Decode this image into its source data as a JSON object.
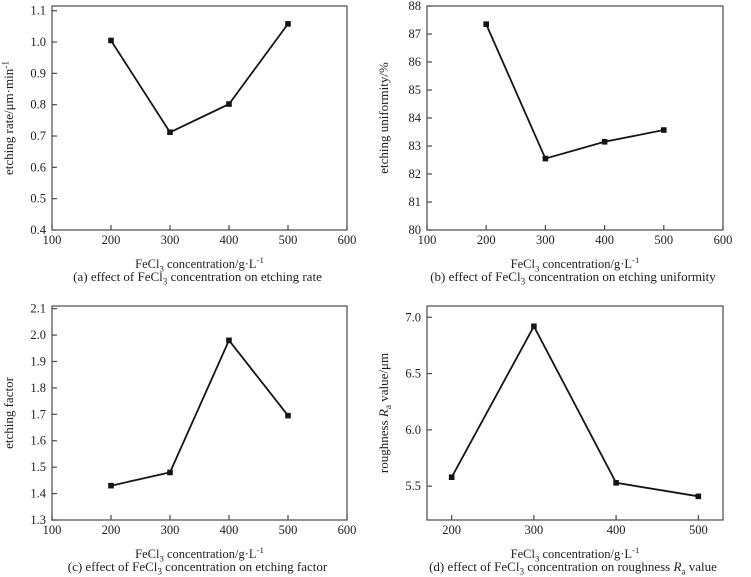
{
  "figure": {
    "background": "#ffffff",
    "text_color": "#1f1f1f",
    "line_color": "#151515",
    "frame_color": "#4a4a4a",
    "marker": "square"
  },
  "chart_data": [
    {
      "id": "a",
      "type": "line",
      "x": [
        200,
        300,
        400,
        500
      ],
      "y": [
        1.005,
        0.712,
        0.802,
        1.058
      ],
      "xlabel": "FeCl~3~ concentration/g·L^-1^",
      "ylabel": "etching rate/μm·min^-1^",
      "caption": "(a) effect of FeCl~3~ concentration on etching rate",
      "xlim": [
        100,
        600
      ],
      "ylim": [
        0.4,
        1.115
      ],
      "xticks": [
        100,
        200,
        300,
        400,
        500,
        600
      ],
      "yticks": [
        0.4,
        0.5,
        0.6,
        0.7,
        0.8,
        0.9,
        1.0,
        1.1
      ],
      "ydecimals": 1,
      "grid": false,
      "legend": "none"
    },
    {
      "id": "b",
      "type": "line",
      "x": [
        200,
        300,
        400,
        500
      ],
      "y": [
        87.35,
        82.55,
        83.15,
        83.57
      ],
      "xlabel": "FeCl~3~ concentration/g·L^-1^",
      "ylabel": "etching uniformity/%",
      "caption": "(b) effect of FeCl~3~ concentration on etching uniformity",
      "xlim": [
        100,
        600
      ],
      "ylim": [
        80,
        88
      ],
      "xticks": [
        100,
        200,
        300,
        400,
        500,
        600
      ],
      "yticks": [
        80,
        81,
        82,
        83,
        84,
        85,
        86,
        87,
        88
      ],
      "ydecimals": 0,
      "grid": false,
      "legend": "none"
    },
    {
      "id": "c",
      "type": "line",
      "x": [
        200,
        300,
        400,
        500
      ],
      "y": [
        1.43,
        1.48,
        1.98,
        1.695
      ],
      "xlabel": "FeCl~3~ concentration/g·L^-1^",
      "ylabel": "etching factor",
      "caption": "(c) effect of FeCl~3~ concentration on etching factor",
      "xlim": [
        100,
        600
      ],
      "ylim": [
        1.3,
        2.11
      ],
      "xticks": [
        100,
        200,
        300,
        400,
        500,
        600
      ],
      "yticks": [
        1.3,
        1.4,
        1.5,
        1.6,
        1.7,
        1.8,
        1.9,
        2.0,
        2.1
      ],
      "ydecimals": 1,
      "grid": false,
      "legend": "none"
    },
    {
      "id": "d",
      "type": "line",
      "x": [
        200,
        300,
        400,
        500
      ],
      "y": [
        5.58,
        6.92,
        5.53,
        5.41
      ],
      "xlabel": "FeCl~3~ concentration/g·L^-1^",
      "ylabel": "roughness *R*~a~ value/μm",
      "caption": "(d) effect of FeCl~3~ concentration on roughness *R*~a~ value",
      "xlim": [
        170,
        530
      ],
      "ylim": [
        5.2,
        7.1
      ],
      "xticks": [
        200,
        300,
        400,
        500
      ],
      "yticks": [
        5.5,
        6.0,
        6.5,
        7.0
      ],
      "ydecimals": 1,
      "grid": false,
      "legend": "none"
    }
  ]
}
